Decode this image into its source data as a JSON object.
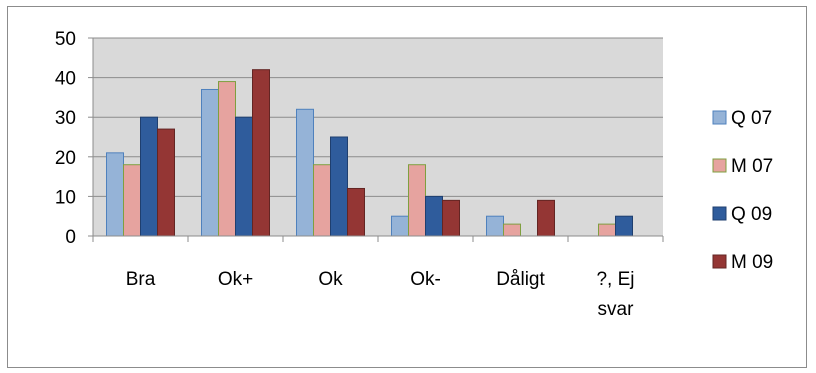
{
  "chart_data": {
    "type": "bar",
    "categories": [
      [
        "Bra"
      ],
      [
        "Ok+"
      ],
      [
        "Ok"
      ],
      [
        "Ok-"
      ],
      [
        "Dåligt"
      ],
      [
        "?, Ej",
        "svar"
      ]
    ],
    "series": [
      {
        "name": "Q 07",
        "color": "#95B3D7",
        "stroke": "#4F81BD",
        "values": [
          21,
          37,
          32,
          5,
          5,
          0
        ]
      },
      {
        "name": "M 07",
        "color": "#E6A39F",
        "stroke": "#7F9F3F",
        "values": [
          18,
          39,
          18,
          18,
          3,
          3
        ]
      },
      {
        "name": "Q 09",
        "color": "#2F5C9C",
        "stroke": "#1F3F6F",
        "values": [
          30,
          30,
          25,
          10,
          0,
          5
        ]
      },
      {
        "name": "M 09",
        "color": "#943634",
        "stroke": "#632523",
        "values": [
          27,
          42,
          12,
          9,
          9,
          0
        ]
      }
    ],
    "yticks": [
      0,
      10,
      20,
      30,
      40,
      50
    ],
    "ylim": [
      0,
      50
    ],
    "grid": true,
    "plot_background": "#D9D9D9",
    "legend_position": "right"
  }
}
